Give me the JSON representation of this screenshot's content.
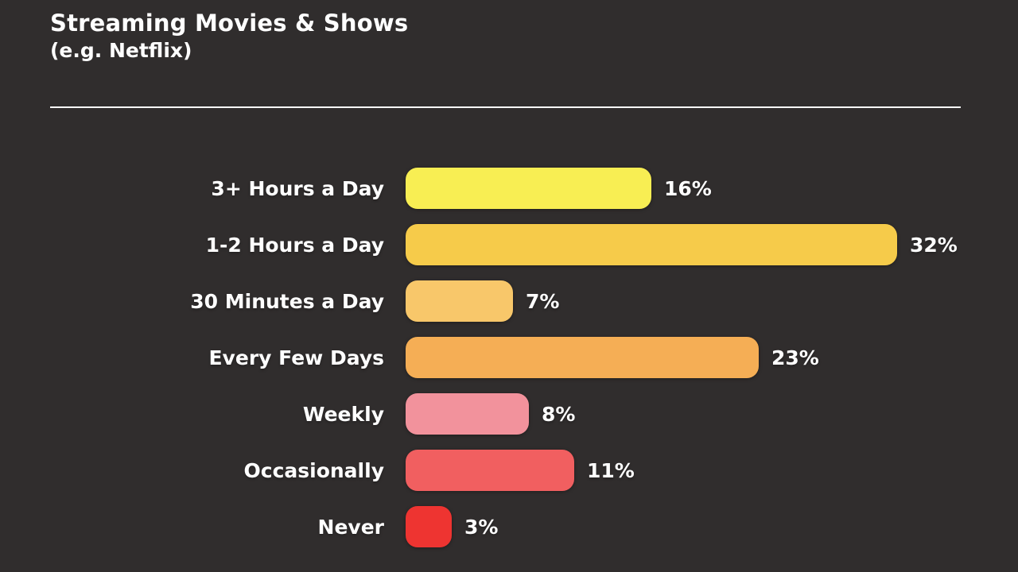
{
  "page": {
    "background_color": "#302d2d",
    "text_color": "#ffffff",
    "divider_color": "#fdfdfd"
  },
  "header": {
    "title": "Streaming Movies & Shows",
    "subtitle": "(e.g. Netflix)"
  },
  "chart_data": {
    "type": "bar",
    "orientation": "horizontal",
    "title": "Streaming Movies & Shows (e.g. Netflix)",
    "categories": [
      "3+ Hours a Day",
      "1-2 Hours a Day",
      "30 Minutes a Day",
      "Every Few Days",
      "Weekly",
      "Occasionally",
      "Never"
    ],
    "values": [
      16,
      32,
      7,
      23,
      8,
      11,
      3
    ],
    "value_labels": [
      "16%",
      "32%",
      "7%",
      "23%",
      "8%",
      "11%",
      "3%"
    ],
    "value_suffix": "%",
    "xlim": [
      0,
      32
    ],
    "grid": false,
    "legend": false,
    "bar_colors": [
      "#f8ee53",
      "#f6cb4a",
      "#f8c76a",
      "#f5ae55",
      "#f2929c",
      "#f15f60",
      "#ee3431"
    ]
  }
}
